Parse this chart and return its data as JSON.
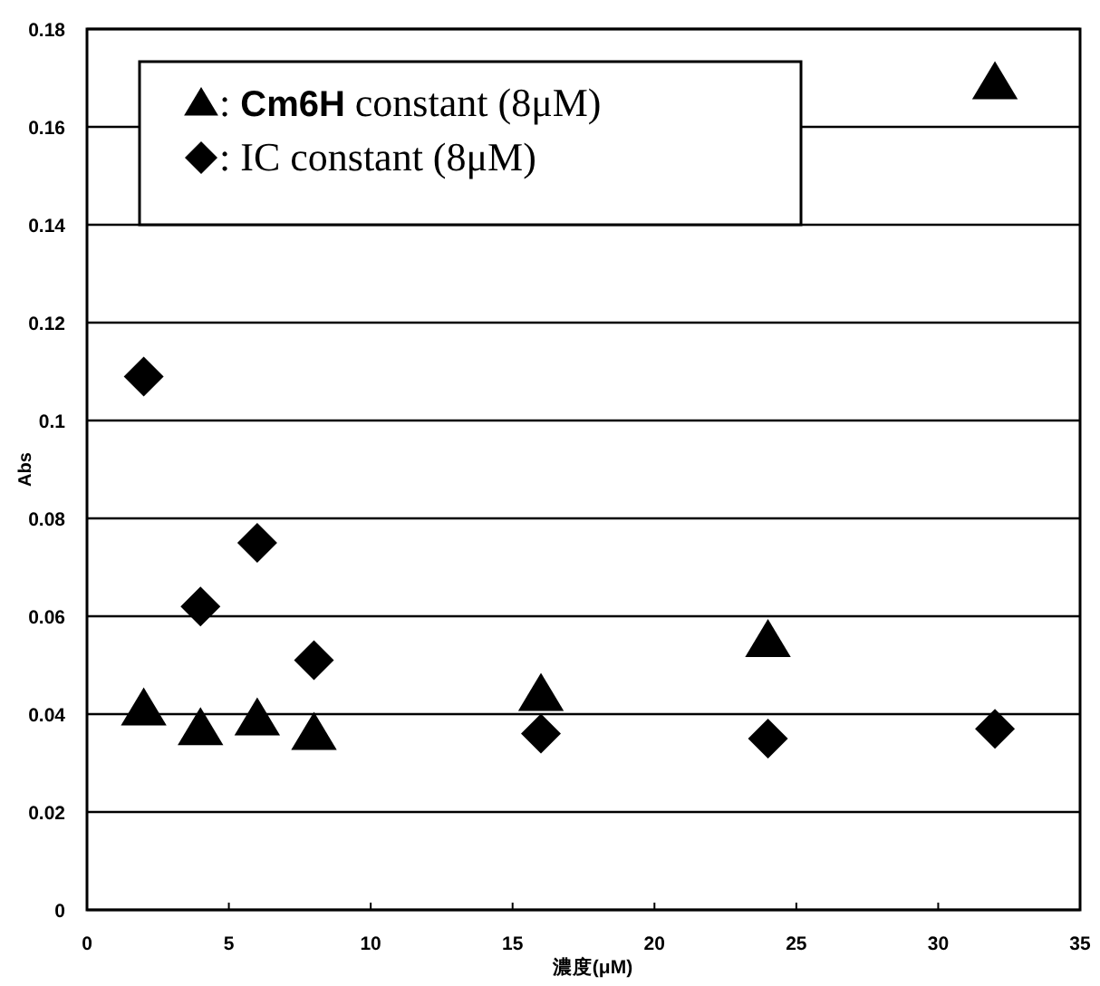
{
  "chart_data": {
    "type": "scatter",
    "xlabel": "濃度(μM)",
    "ylabel": "Abs",
    "xlim": [
      0,
      35
    ],
    "xticks": [
      0,
      5,
      10,
      15,
      20,
      25,
      30,
      35
    ],
    "ylim": [
      0,
      0.18
    ],
    "yticks": [
      0,
      0.02,
      0.04,
      0.06,
      0.08,
      0.1,
      0.12,
      0.14,
      0.16,
      0.18
    ],
    "grid": "y",
    "legend": "top left",
    "series": [
      {
        "name": ": **Cm6H** constant (8μM)",
        "color": "#000000",
        "marker": "triangle",
        "x": [
          2,
          4,
          6,
          8,
          16,
          24,
          32
        ],
        "values": [
          0.041,
          0.037,
          0.039,
          0.036,
          0.044,
          0.055,
          0.169
        ]
      },
      {
        "name": ": IC constant (8μM)",
        "color": "#000000",
        "marker": "diamond",
        "x": [
          2,
          4,
          6,
          8,
          16,
          24,
          32
        ],
        "values": [
          0.109,
          0.062,
          0.075,
          0.051,
          0.036,
          0.035,
          0.037
        ]
      }
    ]
  }
}
